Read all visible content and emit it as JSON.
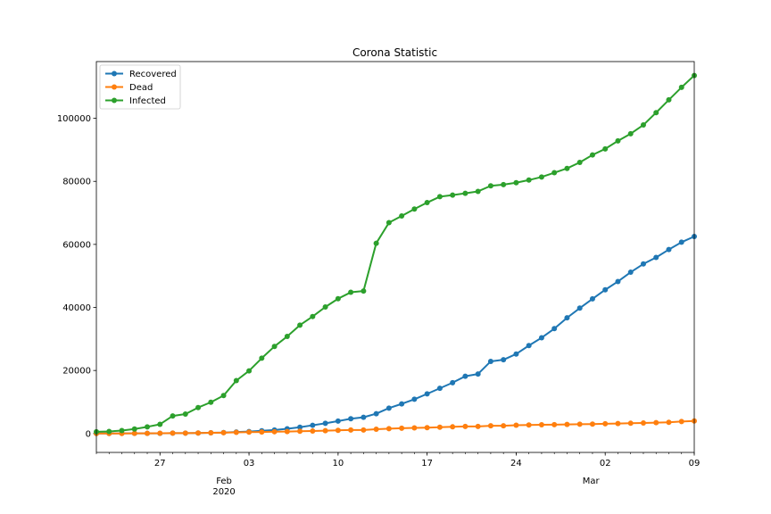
{
  "chart_data": {
    "type": "line",
    "title": "Corona Statistic",
    "xlabel": "",
    "ylabel": "",
    "x_start": "2020-01-22",
    "x_end": "2020-03-09",
    "xlim": [
      "2020-01-22",
      "2020-03-09"
    ],
    "ylim": [
      -6000,
      118000
    ],
    "grid": false,
    "legend_position": "top-left",
    "y_ticks": [
      0,
      20000,
      40000,
      60000,
      80000,
      100000
    ],
    "y_tick_labels": [
      "0",
      "20000",
      "40000",
      "60000",
      "80000",
      "100000"
    ],
    "x_major_ticks": [
      {
        "date": "2020-01-27",
        "label": "27"
      },
      {
        "date": "2020-02-03",
        "label": "03"
      },
      {
        "date": "2020-02-10",
        "label": "10"
      },
      {
        "date": "2020-02-17",
        "label": "17"
      },
      {
        "date": "2020-02-24",
        "label": "24"
      },
      {
        "date": "2020-03-02",
        "label": "02"
      },
      {
        "date": "2020-03-09",
        "label": "09"
      }
    ],
    "x_month_labels": [
      {
        "date": "2020-02-03",
        "month": "Feb",
        "year": "2020"
      },
      {
        "date": "2020-03-02",
        "month": "Mar",
        "year": ""
      }
    ],
    "series": [
      {
        "name": "Recovered",
        "color": "#1f77b4",
        "values": [
          28,
          30,
          36,
          39,
          52,
          61,
          107,
          126,
          143,
          222,
          284,
          472,
          623,
          852,
          1124,
          1487,
          2011,
          2616,
          3244,
          3946,
          4683,
          5150,
          6295,
          8058,
          9395,
          10865,
          12583,
          14352,
          16121,
          18177,
          18890,
          22886,
          23394,
          25227,
          27905,
          30384,
          33277,
          36711,
          39782,
          42716,
          45602,
          48228,
          51170,
          53796,
          55865,
          58359,
          60694,
          62512
        ]
      },
      {
        "name": "Dead",
        "color": "#ff7f0e",
        "values": [
          17,
          18,
          26,
          42,
          56,
          82,
          131,
          133,
          171,
          213,
          259,
          362,
          426,
          492,
          564,
          634,
          719,
          806,
          906,
          1013,
          1113,
          1118,
          1371,
          1523,
          1666,
          1770,
          1868,
          2007,
          2122,
          2247,
          2251,
          2458,
          2469,
          2629,
          2708,
          2770,
          2814,
          2872,
          2941,
          2996,
          3085,
          3160,
          3254,
          3348,
          3460,
          3558,
          3802,
          3988
        ]
      },
      {
        "name": "Infected",
        "color": "#2ca02c",
        "values": [
          555,
          654,
          941,
          1434,
          2118,
          2927,
          5578,
          6166,
          8234,
          9927,
          12038,
          16787,
          19881,
          23892,
          27635,
          30794,
          34391,
          37120,
          40150,
          42762,
          44802,
          45221,
          60368,
          66885,
          69030,
          71224,
          73258,
          75136,
          75639,
          76197,
          76819,
          78572,
          78958,
          79561,
          80406,
          81388,
          82746,
          84112,
          86011,
          88369,
          90306,
          92840,
          95120,
          97886,
          101801,
          105847,
          109821,
          113590
        ]
      }
    ]
  }
}
